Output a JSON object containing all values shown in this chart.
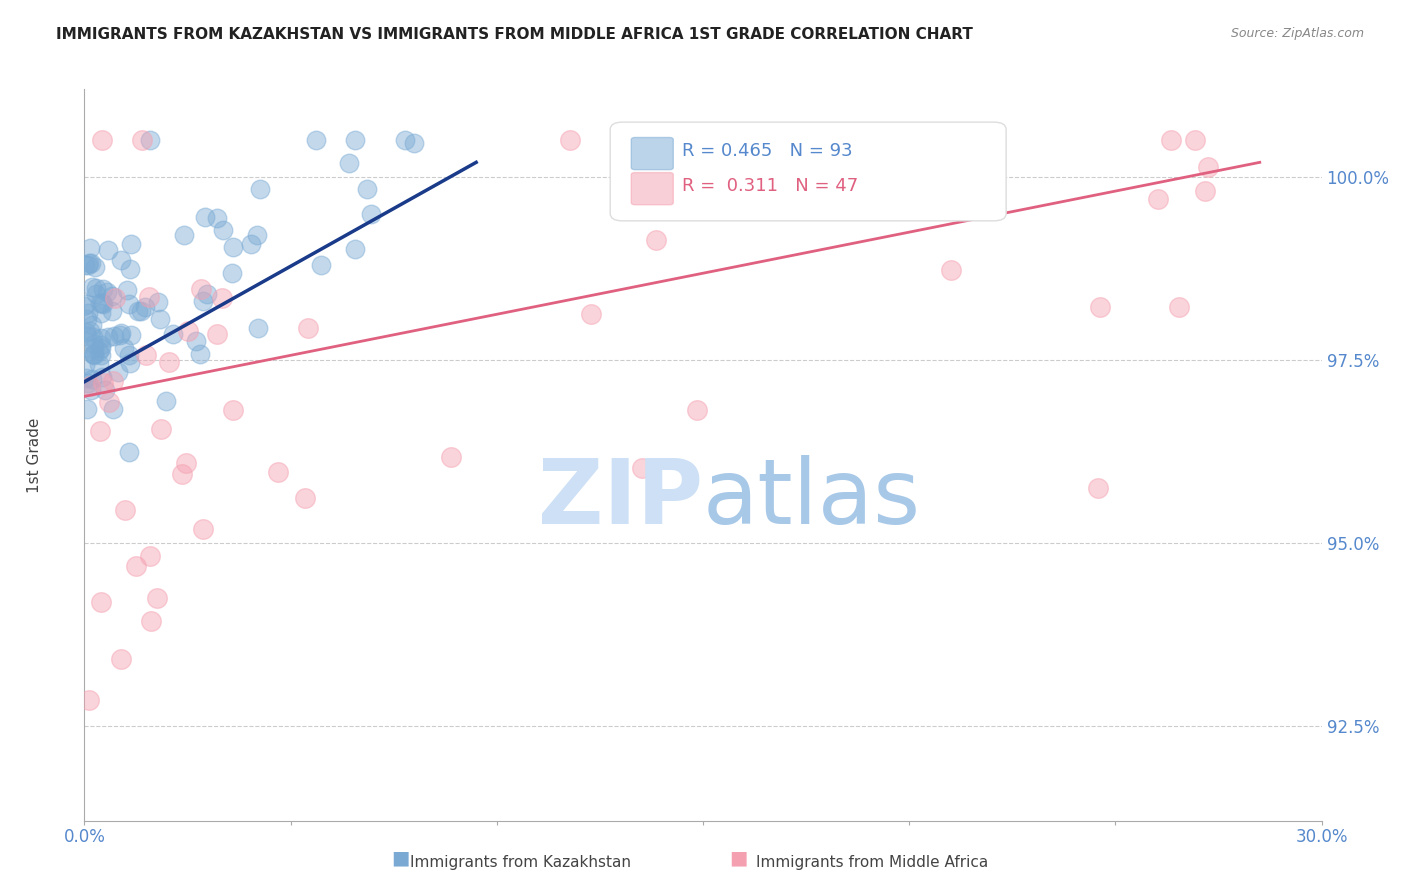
{
  "title": "IMMIGRANTS FROM KAZAKHSTAN VS IMMIGRANTS FROM MIDDLE AFRICA 1ST GRADE CORRELATION CHART",
  "source": "Source: ZipAtlas.com",
  "ylabel": "1st Grade",
  "yticks": [
    92.5,
    95.0,
    97.5,
    100.0
  ],
  "ytick_labels": [
    "92.5%",
    "95.0%",
    "97.5%",
    "100.0%"
  ],
  "xmin": 0.0,
  "xmax": 30.0,
  "ymin": 91.2,
  "ymax": 101.2,
  "legend_blue_label": "Immigrants from Kazakhstan",
  "legend_pink_label": "Immigrants from Middle Africa",
  "R_blue": 0.465,
  "N_blue": 93,
  "R_pink": 0.311,
  "N_pink": 47,
  "blue_color": "#7aaad4",
  "pink_color": "#f4a0b0",
  "blue_line_color": "#1a3a8a",
  "pink_line_color": "#e06080",
  "watermark_zip_color": "#cde0f5",
  "watermark_atlas_color": "#a8c8e8",
  "title_color": "#222222",
  "axis_label_color": "#5588cc",
  "grid_color": "#cccccc"
}
